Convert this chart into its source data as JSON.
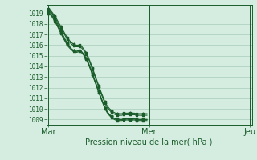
{
  "xlabel": "Pression niveau de la mer( hPa )",
  "bg_color": "#d4ede0",
  "grid_color": "#a8ccb8",
  "line_color": "#1a5c2a",
  "ylim": [
    1008.5,
    1019.8
  ],
  "yticks": [
    1009,
    1010,
    1011,
    1012,
    1013,
    1014,
    1015,
    1016,
    1017,
    1018,
    1019
  ],
  "x_labels": [
    "Mar",
    "Mer",
    "Jeu"
  ],
  "x_positions": [
    0,
    48,
    96
  ],
  "xlim": [
    -1,
    97
  ],
  "series": [
    [
      1019.2,
      1019.1,
      1018.85,
      1018.5,
      1018.15,
      1017.75,
      1017.35,
      1016.95,
      1016.55,
      1016.2,
      1015.9,
      1015.65,
      1015.5,
      1015.4,
      1015.45,
      1015.5,
      1015.35,
      1015.1,
      1014.75,
      1014.35,
      1013.85,
      1013.3,
      1012.75,
      1012.2,
      1011.65,
      1011.1,
      1010.6,
      1010.1,
      1009.75,
      1009.5,
      1009.3,
      1009.15,
      1009.05,
      1009.0,
      1009.0,
      1009.0,
      1009.05,
      1009.05,
      1009.05,
      1009.05,
      1009.05,
      1009.05,
      1009.0,
      1009.0,
      1009.0,
      1009.0,
      1009.0,
      1009.0
    ],
    [
      1019.0,
      1018.85,
      1018.6,
      1018.25,
      1017.9,
      1017.5,
      1017.1,
      1016.7,
      1016.35,
      1016.0,
      1015.75,
      1015.55,
      1015.4,
      1015.3,
      1015.35,
      1015.4,
      1015.25,
      1015.0,
      1014.65,
      1014.25,
      1013.75,
      1013.2,
      1012.65,
      1012.1,
      1011.55,
      1011.0,
      1010.5,
      1010.0,
      1009.65,
      1009.4,
      1009.2,
      1009.05,
      1008.95,
      1008.9,
      1008.9,
      1008.9,
      1008.95,
      1008.95,
      1008.95,
      1008.95,
      1008.95,
      1008.95,
      1008.9,
      1008.9,
      1008.9,
      1008.9,
      1008.9,
      1008.9
    ],
    [
      1019.1,
      1018.95,
      1018.7,
      1018.35,
      1018.0,
      1017.6,
      1017.2,
      1016.8,
      1016.45,
      1016.1,
      1015.85,
      1015.65,
      1015.5,
      1015.4,
      1015.45,
      1015.5,
      1015.35,
      1015.1,
      1014.75,
      1014.35,
      1013.85,
      1013.3,
      1012.75,
      1012.2,
      1011.65,
      1011.1,
      1010.6,
      1010.1,
      1009.75,
      1009.5,
      1009.3,
      1009.15,
      1009.05,
      1009.0,
      1009.0,
      1009.0,
      1009.05,
      1009.05,
      1009.05,
      1009.05,
      1009.05,
      1009.05,
      1009.0,
      1009.0,
      1009.0,
      1009.0,
      1009.0,
      1009.0
    ],
    [
      1019.35,
      1019.2,
      1018.95,
      1018.65,
      1018.3,
      1017.95,
      1017.6,
      1017.25,
      1016.9,
      1016.55,
      1016.3,
      1016.1,
      1015.95,
      1015.85,
      1015.85,
      1015.85,
      1015.7,
      1015.45,
      1015.15,
      1014.75,
      1014.25,
      1013.7,
      1013.15,
      1012.6,
      1012.05,
      1011.5,
      1011.0,
      1010.5,
      1010.15,
      1009.9,
      1009.7,
      1009.55,
      1009.45,
      1009.4,
      1009.4,
      1009.4,
      1009.45,
      1009.45,
      1009.45,
      1009.45,
      1009.45,
      1009.45,
      1009.4,
      1009.4,
      1009.4,
      1009.4,
      1009.4,
      1009.4
    ],
    [
      1019.45,
      1019.3,
      1019.05,
      1018.75,
      1018.45,
      1018.1,
      1017.75,
      1017.4,
      1017.05,
      1016.7,
      1016.45,
      1016.25,
      1016.1,
      1016.0,
      1016.0,
      1016.0,
      1015.85,
      1015.6,
      1015.3,
      1014.9,
      1014.4,
      1013.85,
      1013.3,
      1012.75,
      1012.2,
      1011.65,
      1011.15,
      1010.65,
      1010.3,
      1010.05,
      1009.85,
      1009.7,
      1009.6,
      1009.55,
      1009.55,
      1009.55,
      1009.6,
      1009.6,
      1009.6,
      1009.6,
      1009.6,
      1009.6,
      1009.55,
      1009.55,
      1009.55,
      1009.55,
      1009.55,
      1009.55
    ]
  ]
}
